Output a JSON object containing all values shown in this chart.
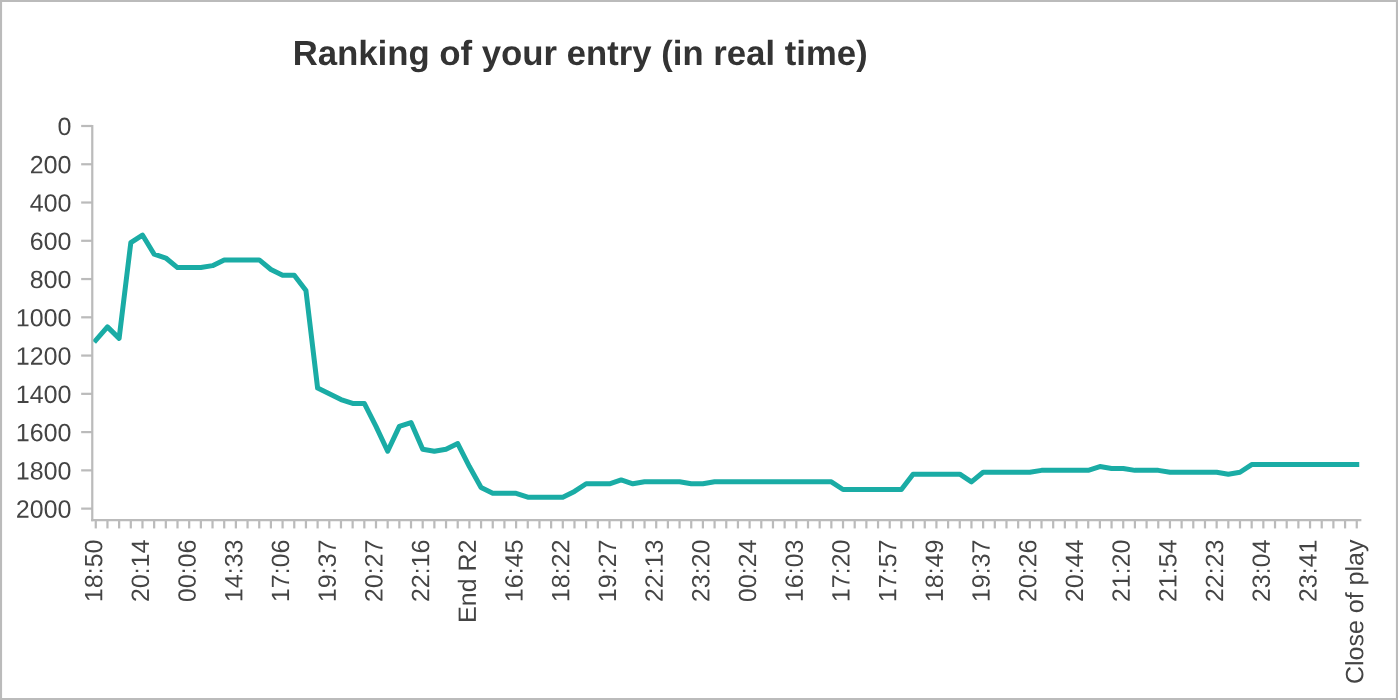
{
  "chart_data": {
    "type": "line",
    "title": "Ranking of your entry (in real time)",
    "categories": [
      "18:50",
      null,
      null,
      null,
      "20:14",
      null,
      null,
      null,
      "00:06",
      null,
      null,
      null,
      "14:33",
      null,
      null,
      null,
      "17:06",
      null,
      null,
      null,
      "19:37",
      null,
      null,
      null,
      "20:27",
      null,
      null,
      null,
      "22:16",
      null,
      null,
      null,
      "End R2",
      null,
      null,
      null,
      "16:45",
      null,
      null,
      null,
      "18:22",
      null,
      null,
      null,
      "19:27",
      null,
      null,
      null,
      "22:13",
      null,
      null,
      null,
      "23:20",
      null,
      null,
      null,
      "00:24",
      null,
      null,
      null,
      "16:03",
      null,
      null,
      null,
      "17:20",
      null,
      null,
      null,
      "17:57",
      null,
      null,
      null,
      "18:49",
      null,
      null,
      null,
      "19:37",
      null,
      null,
      null,
      "20:26",
      null,
      null,
      null,
      "20:44",
      null,
      null,
      null,
      "21:20",
      null,
      null,
      null,
      "21:54",
      null,
      null,
      null,
      "22:23",
      null,
      null,
      null,
      "23:04",
      null,
      null,
      null,
      "23:41",
      null,
      null,
      null,
      "Close of play"
    ],
    "series": [
      {
        "color": "#1aaca5",
        "values": [
          1120,
          1050,
          1110,
          610,
          570,
          670,
          690,
          740,
          740,
          740,
          730,
          700,
          700,
          700,
          700,
          750,
          780,
          780,
          860,
          1370,
          1400,
          1430,
          1450,
          1450,
          1570,
          1700,
          1570,
          1550,
          1690,
          1700,
          1690,
          1660,
          1780,
          1890,
          1920,
          1920,
          1920,
          1940,
          1940,
          1940,
          1940,
          1910,
          1870,
          1870,
          1870,
          1850,
          1870,
          1860,
          1860,
          1860,
          1860,
          1870,
          1870,
          1860,
          1860,
          1860,
          1860,
          1860,
          1860,
          1860,
          1860,
          1860,
          1860,
          1860,
          1900,
          1900,
          1900,
          1900,
          1900,
          1900,
          1820,
          1820,
          1820,
          1820,
          1820,
          1860,
          1810,
          1810,
          1810,
          1810,
          1810,
          1800,
          1800,
          1800,
          1800,
          1800,
          1780,
          1790,
          1790,
          1800,
          1800,
          1800,
          1810,
          1810,
          1810,
          1810,
          1810,
          1820,
          1810,
          1770,
          1770,
          1770,
          1770,
          1770,
          1770,
          1770,
          1770,
          1770,
          1770
        ]
      }
    ],
    "ylim": [
      2060,
      0
    ],
    "yticks": [
      0,
      200,
      400,
      600,
      800,
      1000,
      1200,
      1400,
      1600,
      1800,
      2000
    ],
    "grid": false,
    "marker": "none",
    "line_style": "solid"
  }
}
